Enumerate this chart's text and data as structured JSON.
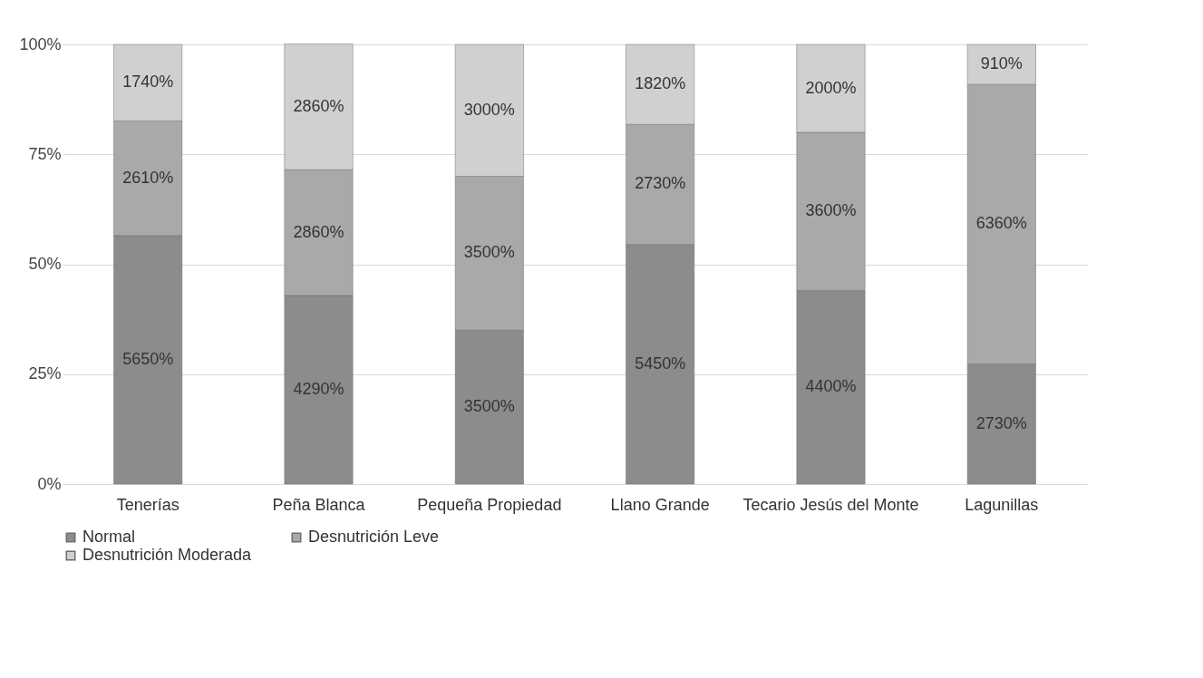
{
  "chart_data": {
    "type": "bar",
    "stacked": true,
    "categories": [
      "Tenerías",
      "Peña Blanca",
      "Pequeña Propiedad",
      "Llano Grande",
      "Tecario Jesús del Monte",
      "Lagunillas"
    ],
    "series": [
      {
        "name": "Normal",
        "color": "#8c8c8c",
        "values": [
          56.5,
          42.9,
          35,
          54.5,
          44,
          27.3
        ],
        "value_labels": [
          "5650%",
          "4290%",
          "3500%",
          "5450%",
          "4400%",
          "2730%"
        ]
      },
      {
        "name": "Desnutrición Leve",
        "color": "#a9a9a9",
        "values": [
          26.1,
          28.6,
          35,
          27.3,
          36,
          63.6
        ],
        "value_labels": [
          "2610%",
          "2860%",
          "3500%",
          "2730%",
          "3600%",
          "6360%"
        ]
      },
      {
        "name": "Desnutrición Moderada",
        "color": "#d0d0d0",
        "values": [
          17.4,
          28.6,
          30,
          18.2,
          20,
          9.1
        ],
        "value_labels": [
          "1740%",
          "2860%",
          "3000%",
          "1820%",
          "2000%",
          "910%"
        ]
      }
    ],
    "ylim": [
      0,
      100
    ],
    "yticks": [
      {
        "value": 0,
        "label": "0%"
      },
      {
        "value": 25,
        "label": "25%"
      },
      {
        "value": 50,
        "label": "50%"
      },
      {
        "value": 75,
        "label": "75%"
      },
      {
        "value": 100,
        "label": "100%"
      }
    ],
    "grid": "y",
    "legend": "bottom"
  }
}
